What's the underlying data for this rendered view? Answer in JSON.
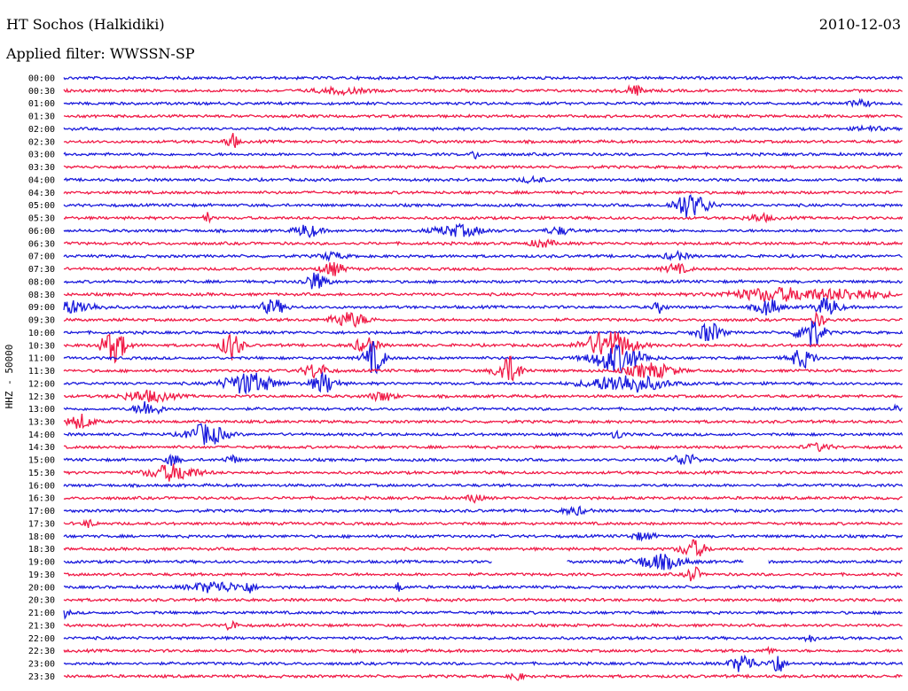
{
  "header": {
    "station": "HT Sochos (Halkidiki)",
    "date": "2010-12-03",
    "filter": "Applied filter: WWSSN-SP"
  },
  "chart_data": {
    "type": "line",
    "title": "HT Sochos (Halkidiki)",
    "ylabel": "HHZ - 50000",
    "colors": {
      "even": "#1a1adc",
      "odd": "#f01a46"
    },
    "rows": [
      {
        "label": "00:00",
        "bursts": []
      },
      {
        "label": "00:30",
        "bursts": [
          {
            "x": 0.68,
            "a": 5,
            "w": 0.01
          },
          {
            "x": 0.33,
            "a": 3,
            "w": 0.02
          }
        ]
      },
      {
        "label": "01:00",
        "bursts": [
          {
            "x": 0.95,
            "a": 3,
            "w": 0.01
          }
        ]
      },
      {
        "label": "01:30",
        "bursts": []
      },
      {
        "label": "02:00",
        "bursts": [
          {
            "x": 0.96,
            "a": 3,
            "w": 0.01
          }
        ]
      },
      {
        "label": "02:30",
        "bursts": [
          {
            "x": 0.2,
            "a": 9,
            "w": 0.005
          }
        ]
      },
      {
        "label": "03:00",
        "bursts": [
          {
            "x": 0.49,
            "a": 5,
            "w": 0.003
          }
        ]
      },
      {
        "label": "03:30",
        "bursts": []
      },
      {
        "label": "04:00",
        "bursts": [
          {
            "x": 0.56,
            "a": 3,
            "w": 0.01
          }
        ]
      },
      {
        "label": "04:30",
        "bursts": []
      },
      {
        "label": "05:00",
        "bursts": [
          {
            "x": 0.74,
            "a": 12,
            "w": 0.01
          },
          {
            "x": 0.76,
            "a": 7,
            "w": 0.01
          }
        ]
      },
      {
        "label": "05:30",
        "bursts": [
          {
            "x": 0.17,
            "a": 7,
            "w": 0.002
          },
          {
            "x": 0.83,
            "a": 4,
            "w": 0.01
          }
        ]
      },
      {
        "label": "06:00",
        "bursts": [
          {
            "x": 0.29,
            "a": 7,
            "w": 0.01
          },
          {
            "x": 0.47,
            "a": 6,
            "w": 0.02
          },
          {
            "x": 0.59,
            "a": 4,
            "w": 0.01
          }
        ]
      },
      {
        "label": "06:30",
        "bursts": [
          {
            "x": 0.57,
            "a": 4,
            "w": 0.01
          }
        ]
      },
      {
        "label": "07:00",
        "bursts": [
          {
            "x": 0.32,
            "a": 4,
            "w": 0.01
          },
          {
            "x": 0.73,
            "a": 4,
            "w": 0.01
          }
        ]
      },
      {
        "label": "07:30",
        "bursts": [
          {
            "x": 0.32,
            "a": 7,
            "w": 0.01
          },
          {
            "x": 0.73,
            "a": 5,
            "w": 0.01
          }
        ]
      },
      {
        "label": "08:00",
        "bursts": [
          {
            "x": 0.3,
            "a": 9,
            "w": 0.01
          }
        ]
      },
      {
        "label": "08:30",
        "bursts": [
          {
            "x": 0.85,
            "a": 7,
            "w": 0.04
          },
          {
            "x": 0.94,
            "a": 5,
            "w": 0.03
          }
        ]
      },
      {
        "label": "09:00",
        "bursts": [
          {
            "x": 0.01,
            "a": 7,
            "w": 0.02
          },
          {
            "x": 0.25,
            "a": 8,
            "w": 0.01
          },
          {
            "x": 0.71,
            "a": 6,
            "w": 0.005
          },
          {
            "x": 0.84,
            "a": 9,
            "w": 0.01
          },
          {
            "x": 0.91,
            "a": 10,
            "w": 0.01
          }
        ]
      },
      {
        "label": "09:30",
        "bursts": [
          {
            "x": 0.34,
            "a": 8,
            "w": 0.015
          },
          {
            "x": 0.9,
            "a": 8,
            "w": 0.005
          }
        ]
      },
      {
        "label": "10:00",
        "bursts": [
          {
            "x": 0.77,
            "a": 11,
            "w": 0.01
          },
          {
            "x": 0.89,
            "a": 18,
            "w": 0.01
          }
        ]
      },
      {
        "label": "10:30",
        "bursts": [
          {
            "x": 0.06,
            "a": 18,
            "w": 0.01
          },
          {
            "x": 0.2,
            "a": 16,
            "w": 0.008
          },
          {
            "x": 0.36,
            "a": 8,
            "w": 0.01
          },
          {
            "x": 0.65,
            "a": 16,
            "w": 0.02
          }
        ]
      },
      {
        "label": "11:00",
        "bursts": [
          {
            "x": 0.37,
            "a": 18,
            "w": 0.008
          },
          {
            "x": 0.66,
            "a": 16,
            "w": 0.02
          },
          {
            "x": 0.88,
            "a": 10,
            "w": 0.01
          }
        ]
      },
      {
        "label": "11:30",
        "bursts": [
          {
            "x": 0.3,
            "a": 8,
            "w": 0.01
          },
          {
            "x": 0.53,
            "a": 16,
            "w": 0.01
          },
          {
            "x": 0.7,
            "a": 8,
            "w": 0.02
          }
        ]
      },
      {
        "label": "12:00",
        "bursts": [
          {
            "x": 0.22,
            "a": 12,
            "w": 0.02
          },
          {
            "x": 0.31,
            "a": 11,
            "w": 0.01
          },
          {
            "x": 0.67,
            "a": 10,
            "w": 0.03
          }
        ]
      },
      {
        "label": "12:30",
        "bursts": [
          {
            "x": 0.1,
            "a": 6,
            "w": 0.02
          },
          {
            "x": 0.38,
            "a": 5,
            "w": 0.01
          }
        ]
      },
      {
        "label": "13:00",
        "bursts": [
          {
            "x": 0.1,
            "a": 9,
            "w": 0.01
          },
          {
            "x": 0.99,
            "a": 6,
            "w": 0.002
          }
        ]
      },
      {
        "label": "13:30",
        "bursts": [
          {
            "x": 0.02,
            "a": 8,
            "w": 0.01
          }
        ]
      },
      {
        "label": "14:00",
        "bursts": [
          {
            "x": 0.17,
            "a": 12,
            "w": 0.015
          },
          {
            "x": 0.66,
            "a": 5,
            "w": 0.005
          }
        ]
      },
      {
        "label": "14:30",
        "bursts": [
          {
            "x": 0.9,
            "a": 4,
            "w": 0.01
          }
        ]
      },
      {
        "label": "15:00",
        "bursts": [
          {
            "x": 0.13,
            "a": 7,
            "w": 0.005
          },
          {
            "x": 0.2,
            "a": 5,
            "w": 0.005
          },
          {
            "x": 0.74,
            "a": 7,
            "w": 0.01
          }
        ]
      },
      {
        "label": "15:30",
        "bursts": [
          {
            "x": 0.13,
            "a": 9,
            "w": 0.02
          }
        ]
      },
      {
        "label": "16:00",
        "bursts": []
      },
      {
        "label": "16:30",
        "bursts": [
          {
            "x": 0.49,
            "a": 6,
            "w": 0.005
          }
        ]
      },
      {
        "label": "17:00",
        "bursts": [
          {
            "x": 0.61,
            "a": 4,
            "w": 0.01
          }
        ]
      },
      {
        "label": "17:30",
        "bursts": [
          {
            "x": 0.03,
            "a": 4,
            "w": 0.005
          }
        ]
      },
      {
        "label": "18:00",
        "bursts": [
          {
            "x": 0.69,
            "a": 4,
            "w": 0.01
          }
        ]
      },
      {
        "label": "18:30",
        "bursts": [
          {
            "x": 0.75,
            "a": 10,
            "w": 0.01
          }
        ]
      },
      {
        "label": "19:00",
        "bursts": [
          {
            "x": 0.71,
            "a": 8,
            "w": 0.02
          }
        ]
      },
      {
        "label": "19:30",
        "bursts": [
          {
            "x": 0.75,
            "a": 10,
            "w": 0.005
          }
        ]
      },
      {
        "label": "20:00",
        "bursts": [
          {
            "x": 0.18,
            "a": 6,
            "w": 0.02
          },
          {
            "x": 0.22,
            "a": 6,
            "w": 0.005
          },
          {
            "x": 0.4,
            "a": 5,
            "w": 0.002
          }
        ]
      },
      {
        "label": "20:30",
        "bursts": []
      },
      {
        "label": "21:00",
        "bursts": [
          {
            "x": 0.0,
            "a": 5,
            "w": 0.005
          }
        ]
      },
      {
        "label": "21:30",
        "bursts": [
          {
            "x": 0.2,
            "a": 14,
            "w": 0.003
          }
        ]
      },
      {
        "label": "22:00",
        "bursts": [
          {
            "x": 0.89,
            "a": 4,
            "w": 0.005
          }
        ]
      },
      {
        "label": "22:30",
        "bursts": [
          {
            "x": 0.84,
            "a": 7,
            "w": 0.003
          }
        ]
      },
      {
        "label": "23:00",
        "bursts": [
          {
            "x": 0.81,
            "a": 10,
            "w": 0.01
          },
          {
            "x": 0.85,
            "a": 14,
            "w": 0.005
          }
        ]
      },
      {
        "label": "23:30",
        "bursts": [
          {
            "x": 0.54,
            "a": 5,
            "w": 0.005
          }
        ]
      }
    ],
    "gaps": [
      {
        "row": "19:00",
        "x0": 0.51,
        "x1": 0.6
      },
      {
        "row": "19:00",
        "x0": 0.81,
        "x1": 0.84
      }
    ]
  }
}
